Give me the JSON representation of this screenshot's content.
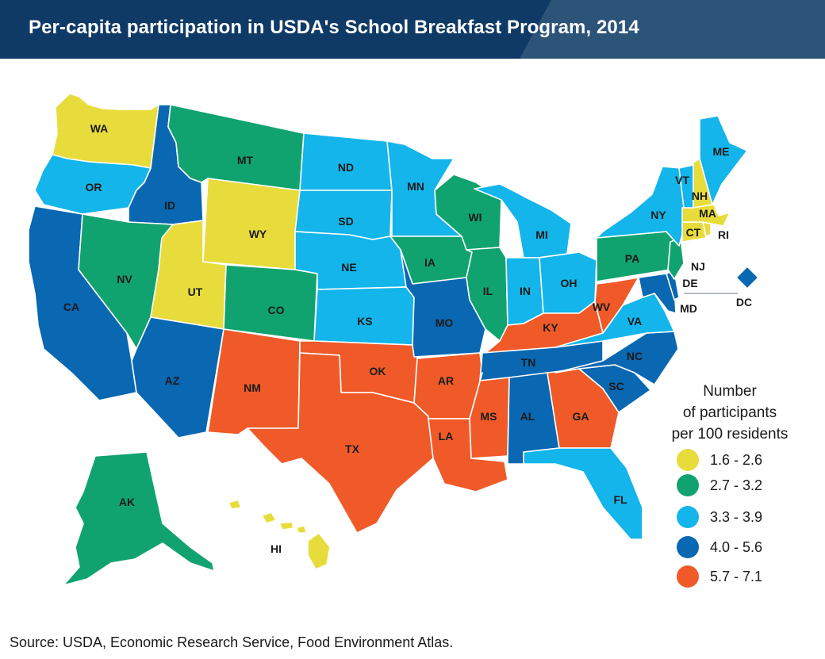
{
  "title": "Per-capita participation in USDA's School Breakfast Program, 2014",
  "source": "Source: USDA, Economic Research Service, Food Environment Atlas.",
  "legend": {
    "title_lines": [
      "Number",
      "of participants",
      "per 100 residents"
    ],
    "bins": [
      {
        "label": "1.6 - 2.6",
        "color": "#e8dc3c"
      },
      {
        "label": "2.7 - 3.2",
        "color": "#11a36f"
      },
      {
        "label": "3.3 - 3.9",
        "color": "#13b5ea"
      },
      {
        "label": "4.0 - 5.6",
        "color": "#0a67b2"
      },
      {
        "label": "5.7 - 7.1",
        "color": "#f05a28"
      }
    ]
  },
  "states": [
    {
      "abbr": "WA",
      "bin": 0
    },
    {
      "abbr": "OR",
      "bin": 2
    },
    {
      "abbr": "CA",
      "bin": 3
    },
    {
      "abbr": "ID",
      "bin": 3
    },
    {
      "abbr": "NV",
      "bin": 1
    },
    {
      "abbr": "UT",
      "bin": 0
    },
    {
      "abbr": "AZ",
      "bin": 3
    },
    {
      "abbr": "MT",
      "bin": 1
    },
    {
      "abbr": "WY",
      "bin": 0
    },
    {
      "abbr": "CO",
      "bin": 1
    },
    {
      "abbr": "NM",
      "bin": 4
    },
    {
      "abbr": "ND",
      "bin": 2
    },
    {
      "abbr": "SD",
      "bin": 2
    },
    {
      "abbr": "NE",
      "bin": 2
    },
    {
      "abbr": "KS",
      "bin": 2
    },
    {
      "abbr": "OK",
      "bin": 4
    },
    {
      "abbr": "TX",
      "bin": 4
    },
    {
      "abbr": "MN",
      "bin": 2
    },
    {
      "abbr": "IA",
      "bin": 1
    },
    {
      "abbr": "MO",
      "bin": 3
    },
    {
      "abbr": "AR",
      "bin": 4
    },
    {
      "abbr": "LA",
      "bin": 4
    },
    {
      "abbr": "WI",
      "bin": 1
    },
    {
      "abbr": "IL",
      "bin": 1
    },
    {
      "abbr": "MI",
      "bin": 2
    },
    {
      "abbr": "IN",
      "bin": 2
    },
    {
      "abbr": "OH",
      "bin": 2
    },
    {
      "abbr": "KY",
      "bin": 4
    },
    {
      "abbr": "TN",
      "bin": 3
    },
    {
      "abbr": "MS",
      "bin": 4
    },
    {
      "abbr": "AL",
      "bin": 3
    },
    {
      "abbr": "GA",
      "bin": 4
    },
    {
      "abbr": "FL",
      "bin": 2
    },
    {
      "abbr": "SC",
      "bin": 3
    },
    {
      "abbr": "NC",
      "bin": 3
    },
    {
      "abbr": "VA",
      "bin": 2
    },
    {
      "abbr": "WV",
      "bin": 4
    },
    {
      "abbr": "MD",
      "bin": 3
    },
    {
      "abbr": "DE",
      "bin": 3
    },
    {
      "abbr": "DC",
      "bin": 3
    },
    {
      "abbr": "PA",
      "bin": 1
    },
    {
      "abbr": "NJ",
      "bin": 1
    },
    {
      "abbr": "NY",
      "bin": 2
    },
    {
      "abbr": "CT",
      "bin": 0
    },
    {
      "abbr": "RI",
      "bin": 0
    },
    {
      "abbr": "MA",
      "bin": 0
    },
    {
      "abbr": "VT",
      "bin": 2
    },
    {
      "abbr": "NH",
      "bin": 0
    },
    {
      "abbr": "ME",
      "bin": 2
    },
    {
      "abbr": "AK",
      "bin": 1
    },
    {
      "abbr": "HI",
      "bin": 0
    }
  ]
}
